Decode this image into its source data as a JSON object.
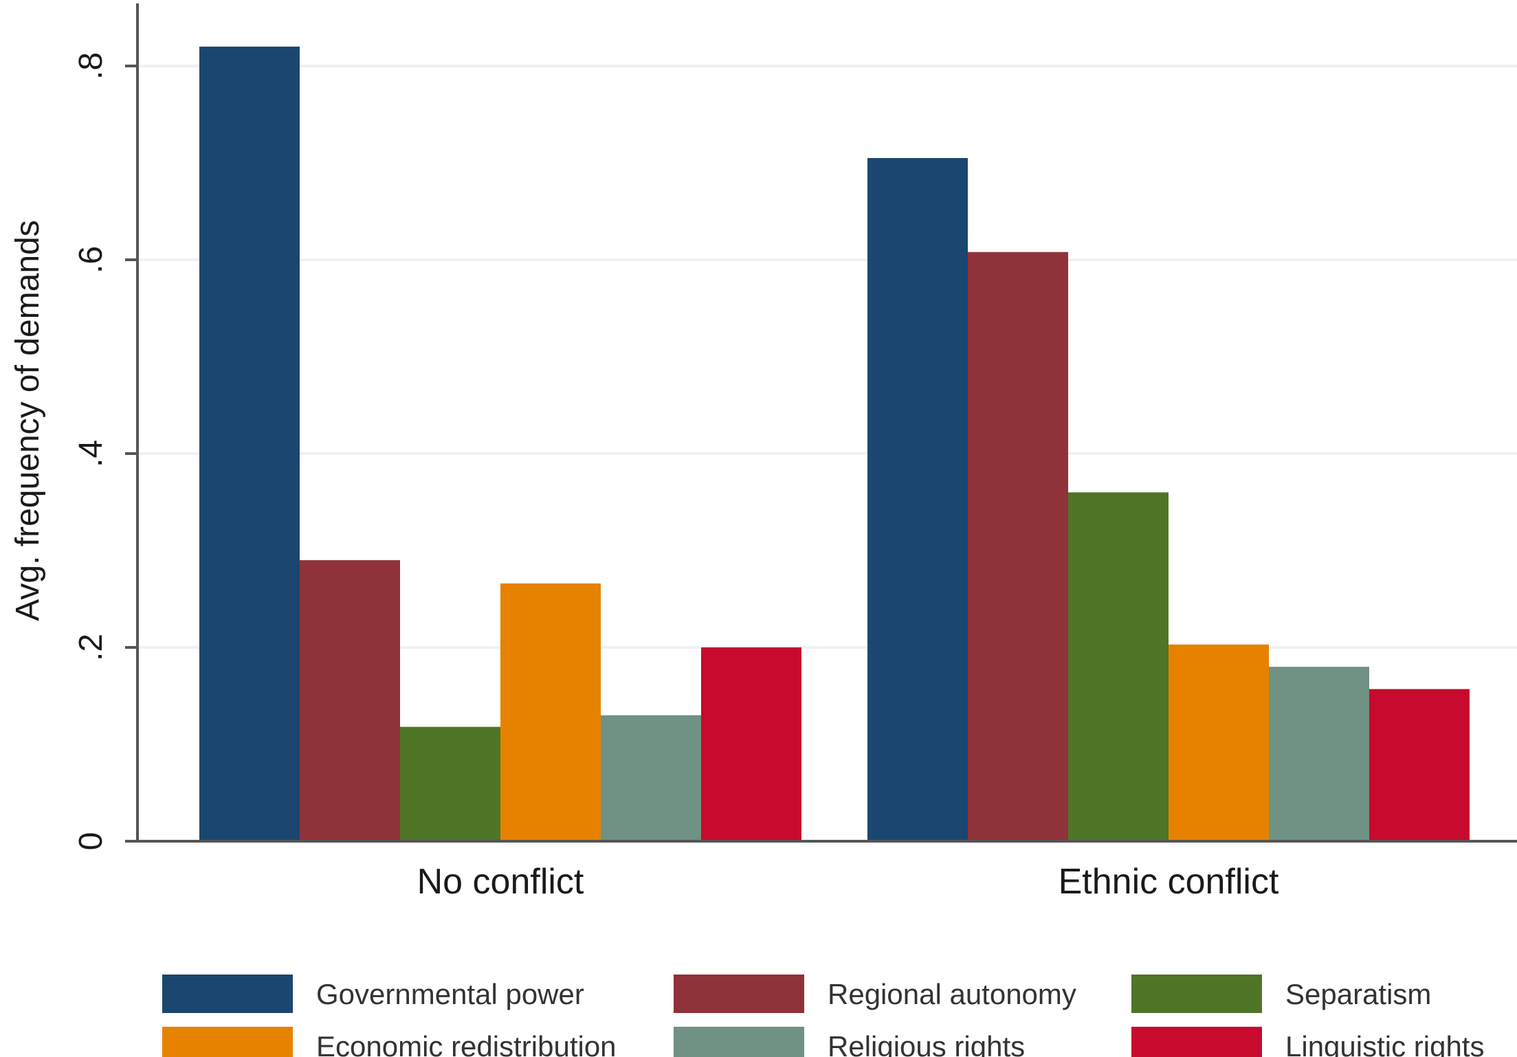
{
  "chart_data": {
    "type": "bar",
    "ylabel": "Avg. frequency of demands",
    "xlabel": "",
    "title": "",
    "ylim": [
      0,
      0.86
    ],
    "yticks": [
      0,
      0.2,
      0.4,
      0.6,
      0.8
    ],
    "ytick_labels": [
      "0",
      ".2",
      ".4",
      ".6",
      ".8"
    ],
    "grid": true,
    "legend_placement": "bottom",
    "categories": [
      "No conflict",
      "Ethnic conflict"
    ],
    "series": [
      {
        "name": "Governmental power",
        "color": "#1a4670",
        "values": [
          0.82,
          0.705
        ]
      },
      {
        "name": "Regional autonomy",
        "color": "#8f3239",
        "values": [
          0.29,
          0.608
        ]
      },
      {
        "name": "Separatism",
        "color": "#4f7527",
        "values": [
          0.118,
          0.36
        ]
      },
      {
        "name": "Economic redistribution",
        "color": "#e68200",
        "values": [
          0.266,
          0.203
        ]
      },
      {
        "name": "Religious rights",
        "color": "#6f9284",
        "values": [
          0.13,
          0.18
        ]
      },
      {
        "name": "Linguistic rights",
        "color": "#c70a2e",
        "values": [
          0.2,
          0.157
        ]
      }
    ]
  }
}
